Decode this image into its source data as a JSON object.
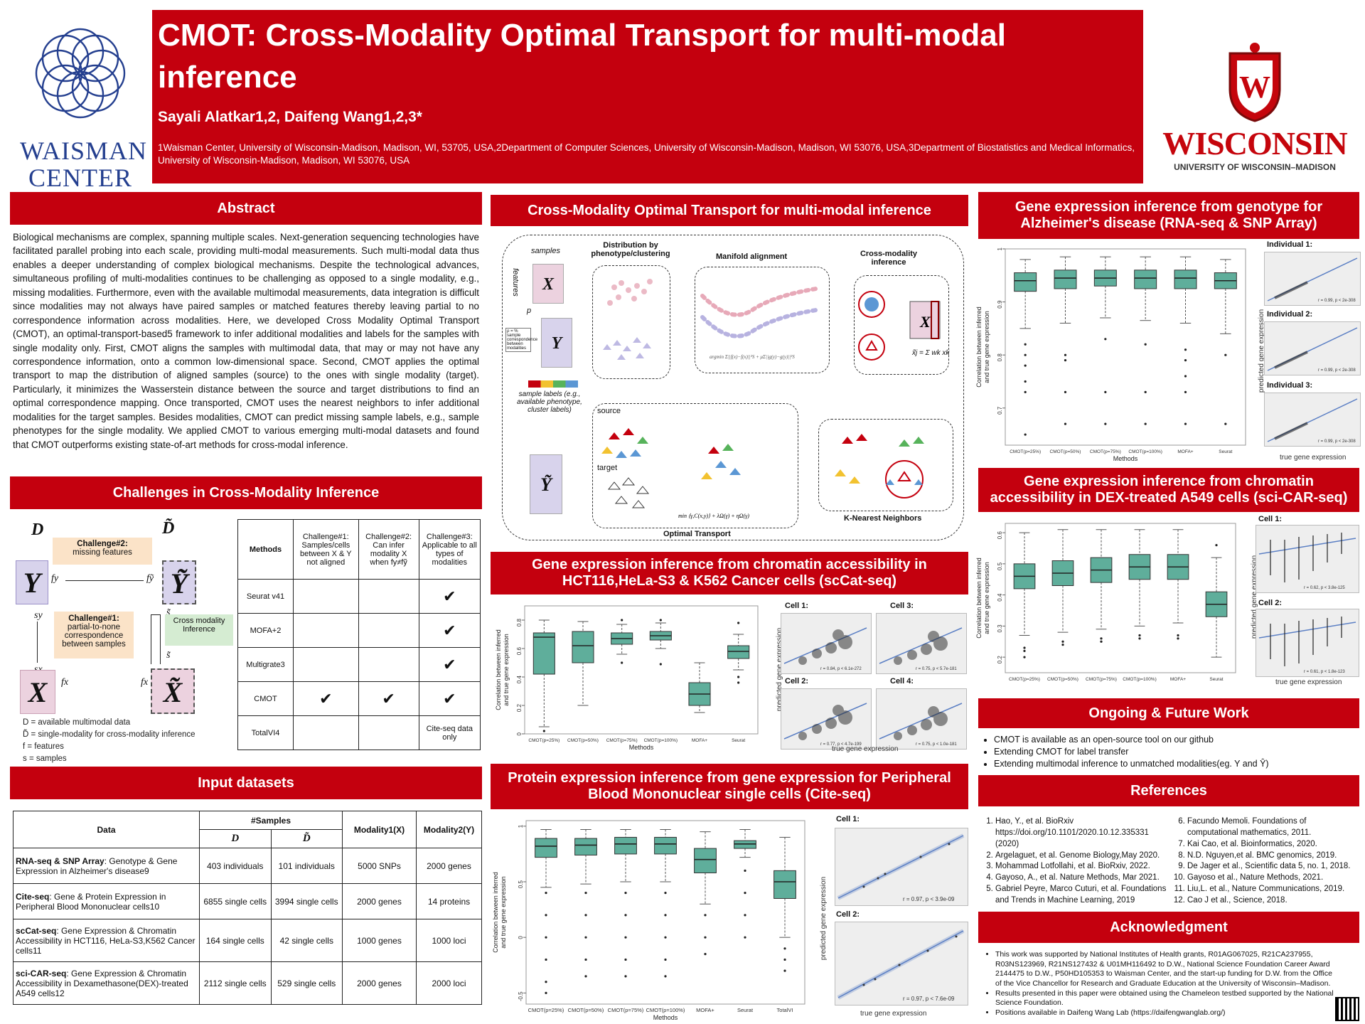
{
  "header": {
    "title": "CMOT: Cross-Modality Optimal Transport for multi-modal inference",
    "authors": "Sayali Alatkar1,2, Daifeng Wang1,2,3*",
    "affiliations": "1Waisman Center, University of Wisconsin-Madison, Madison, WI, 53705, USA,2Department of Computer Sciences, University of Wisconsin-Madison, Madison, WI 53076, USA,3Department of Biostatistics and Medical Informatics, University of Wisconsin-Madison, Madison, WI 53076, USA",
    "left_logo_line1": "WAISMAN",
    "left_logo_line2": "CENTER",
    "right_logo_line1": "WISCONSIN",
    "right_logo_line2": "UNIVERSITY OF WISCONSIN–MADISON"
  },
  "abstract": {
    "title": "Abstract",
    "text": "Biological mechanisms are complex, spanning multiple scales. Next-generation sequencing technologies have facilitated parallel probing into each scale, providing multi-modal measurements. Such multi-modal data thus enables a deeper understanding of complex biological mechanisms. Despite the technological advances, simultaneous profiling of multi-modalities continues to be challenging as opposed to a single modality, e.g., missing modalities. Furthermore, even with the available multimodal measurements, data integration is difficult since modalities may not always have paired samples or matched features thereby leaving partial to no correspondence information across modalities. Here, we developed Cross Modality Optimal Transport (CMOT), an optimal-transport-based5 framework to infer additional modalities and labels for the samples with single modality only. First, CMOT aligns the samples with multimodal data, that may or may not have any correspondence information, onto a common low-dimensional space. Second, CMOT applies the optimal transport to map the distribution of aligned samples (source) to the ones with single modality (target). Particularly, it minimizes the Wasserstein distance between the source and target distributions to find an optimal correspondence mapping. Once transported, CMOT uses the nearest neighbors to infer additional modalities for the target samples. Besides modalities, CMOT can predict missing sample labels, e.g., sample phenotypes for the single modality. We applied CMOT to various emerging multi-modal datasets and found that CMOT outperforms existing state-of-art methods for cross-modal inference."
  },
  "challenges": {
    "title": "Challenges in Cross-Modality Inference",
    "diagram": {
      "D": "D",
      "D_tilde": "D̃",
      "Y": "Y",
      "Y_tilde": "Ỹ",
      "X": "X",
      "X_tilde": "X̃",
      "fy": "fy",
      "fy_tilde": "fỹ",
      "fx": "fx",
      "fx_tilde": "fx",
      "sy": "sy",
      "sx": "sx",
      "s_tilde": "s̃",
      "challenge2_title": "Challenge#2:",
      "challenge2_text": "missing features",
      "challenge1_title": "Challenge#1:",
      "challenge1_text": "partial-to-none correspondence between samples",
      "cross_modality": "Cross modality Inference"
    },
    "legend": [
      "D = available multimodal data",
      "D̃ = single-modality for cross-modality inference",
      "f = features",
      "s = samples"
    ],
    "table": {
      "headers": [
        "Methods",
        "Challenge#1: Samples/cells between X & Y not aligned",
        "Challenge#2: Can infer modality X when fy≠fỹ",
        "Challenge#3: Applicable to all types of modalities"
      ],
      "rows": [
        [
          "Seurat v41",
          "",
          "",
          "✔"
        ],
        [
          "MOFA+2",
          "",
          "",
          "✔"
        ],
        [
          "Multigrate3",
          "",
          "",
          "✔"
        ],
        [
          "CMOT",
          "✔",
          "✔",
          "✔"
        ],
        [
          "TotalVI4",
          "",
          "",
          "Cite-seq data only"
        ]
      ]
    }
  },
  "datasets": {
    "title": "Input datasets",
    "col_data": "Data",
    "col_samples": "#Samples",
    "col_D": "D",
    "col_Dt": "D̃",
    "col_mod1": "Modality1(X)",
    "col_mod2": "Modality2(Y)",
    "rows": [
      {
        "name": "RNA-seq & SNP Array",
        "desc": ": Genotype & Gene Expression in Alzheimer's disease9",
        "d": "403 individuals",
        "dt": "101 individuals",
        "m1": "5000 SNPs",
        "m2": "2000 genes"
      },
      {
        "name": "Cite-seq",
        "desc": ": Gene & Protein Expression in Peripheral Blood Mononuclear cells10",
        "d": "6855 single cells",
        "dt": "3994 single cells",
        "m1": "2000 genes",
        "m2": "14 proteins"
      },
      {
        "name": "scCat-seq",
        "desc": ": Gene Expression & Chromatin Accessibility in HCT116, HeLa-S3,K562 Cancer cells11",
        "d": "164 single cells",
        "dt": "42 single cells",
        "m1": "1000 genes",
        "m2": "1000 loci"
      },
      {
        "name": "sci-CAR-seq",
        "desc": ": Gene Expression & Chromatin Accessibility in Dexamethasone(DEX)-treated A549 cells12",
        "d": "2112 single cells",
        "dt": "529 single cells",
        "m1": "2000 genes",
        "m2": "2000 loci"
      }
    ]
  },
  "cmot": {
    "title": "Cross-Modality Optimal Transport for multi-modal inference",
    "labels": {
      "samples": "samples",
      "features": "features",
      "p": "p",
      "distribution": "Distribution by phenotype/clustering",
      "manifold": "Manifold alignment",
      "cross_inference": "Cross-modality inference",
      "pi_note": "ρ = % sample correspondence between modalities",
      "sample_labels": "sample labels (e.g., available phenotype, cluster labels)",
      "source": "source",
      "target": "target",
      "optimal_transport": "Optimal Transport",
      "knn": "K-Nearest Neighbors",
      "formula_xj": "x̃j = Σ wk xk"
    }
  },
  "alz": {
    "title": "Gene expression inference from genotype for Alzheimer's disease (RNA-seq & SNP Array)",
    "ylabel": "Correlation between inferred and true gene expression",
    "xlabel": "Methods",
    "scatter_ylabel": "predicted gene expression",
    "scatter_xlabel": "true gene expression",
    "individuals": [
      "Individual 1:",
      "Individual 2:",
      "Individual 3:"
    ],
    "individual_stats": [
      "r = 0.99, p < 2e-308",
      "r = 0.99, p < 2e-308",
      "r = 0.99, p < 2e-308"
    ]
  },
  "scicar": {
    "title": "Gene expression inference from chromatin accessibility in DEX-treated A549 cells (sci-CAR-seq)",
    "ylabel": "Correlation between inferred and true gene expression",
    "scatter_ylabel": "predicted gene expression",
    "scatter_xlabel": "true gene expression",
    "cells": [
      "Cell 1:",
      "Cell 2:"
    ],
    "cell_stats": [
      "r = 0.62, p < 3.8e-125",
      "r = 0.61, p < 1.8e-123"
    ]
  },
  "sccat": {
    "title": "Gene expression inference from chromatin accessibility in HCT116,HeLa-S3 & K562 Cancer cells (scCat-seq)",
    "ylabel": "Correlation between inferred and true gene expression",
    "xlabel": "Methods",
    "scatter_ylabel": "predicted gene expression",
    "scatter_xlabel": "true gene expression",
    "cells": [
      "Cell 1:",
      "Cell 3:",
      "Cell 2:",
      "Cell 4:"
    ],
    "cell_stats": [
      "r = 0.84, p < 6.1e-272",
      "r = 0.75, p < 5.7e-181",
      "r = 0.77, p < 4.7e-199",
      "r = 0.75, p < 1.0e-181"
    ]
  },
  "citeseq": {
    "title": "Protein expression inference from gene expression for Peripheral Blood Mononuclear single cells (Cite-seq)",
    "ylabel": "Correlation between inferred and true gene expression",
    "xlabel": "Methods",
    "scatter_ylabel": "predicted gene expression",
    "scatter_xlabel": "true gene expression",
    "cells": [
      "Cell 1:",
      "Cell 2:"
    ],
    "cell_stats": [
      "r = 0.97, p < 3.9e-09",
      "r = 0.97, p < 7.6e-09"
    ]
  },
  "future": {
    "title": "Ongoing & Future Work",
    "items": [
      "CMOT is available as an open-source tool on our github",
      "Extending CMOT for label transfer",
      "Extending multimodal inference to unmatched modalities(eg. Y and Ŷ)"
    ]
  },
  "references": {
    "title": "References",
    "left": [
      "Hao, Y., et al. BioRxiv https://doi.org/10.1101/2020.10.12.335331 (2020)",
      "Argelaguet, et al. Genome Biology,May 2020.",
      "Mohammad Lotfollahi, et al. BioRxiv, 2022.",
      "Gayoso, A., et al. Nature Methods, Mar 2021.",
      "Gabriel Peyre, Marco Cuturi, et al. Foundations and Trends in Machine Learning, 2019"
    ],
    "right": [
      "Facundo Memoli. Foundations of computational mathematics, 2011.",
      "Kai Cao, et al. Bioinformatics, 2020.",
      "N.D. Nguyen,et al. BMC genomics, 2019.",
      "De Jager et al., Scientific data 5, no. 1, 2018.",
      "Gayoso et al., Nature Methods, 2021.",
      "Liu,L. et al., Nature Communications, 2019.",
      "Cao J et al., Science, 2018."
    ]
  },
  "ack": {
    "title": "Acknowledgment",
    "items": [
      "This work was supported by National Institutes of Health grants, R01AG067025, R21CA237955, R03NS123969, R21NS127432 & U01MH116492 to D.W., National Science Foundation Career Award 2144475 to D.W., P50HD105353 to Waisman Center, and the start-up funding for D.W. from the Office of the Vice Chancellor for Research and Graduate Education at the University of Wisconsin–Madison.",
      "Results presented in this paper were obtained using the Chameleon testbed supported by the National Science Foundation.",
      "Positions available in Daifeng Wang Lab (https://daifengwanglab.org/)"
    ]
  },
  "chart_data": [
    {
      "type": "box",
      "title": "Gene expression inference from genotype for Alzheimer's disease (RNA-seq & SNP Array)",
      "xlabel": "Methods",
      "ylabel": "Correlation between inferred and true gene expression",
      "ylim": [
        0.63,
        1.0
      ],
      "yticks": [
        0.7,
        0.8,
        0.9,
        1.0
      ],
      "categories": [
        "CMOT(p=25%)",
        "CMOT(p=50%)",
        "CMOT(p=75%)",
        "CMOT(p=100%)",
        "MOFA+",
        "Seurat"
      ],
      "boxes": [
        {
          "min": 0.85,
          "q1": 0.92,
          "median": 0.94,
          "q3": 0.955,
          "max": 0.98,
          "outliers": [
            0.82,
            0.8,
            0.78,
            0.75,
            0.73,
            0.65
          ]
        },
        {
          "min": 0.86,
          "q1": 0.925,
          "median": 0.945,
          "q3": 0.96,
          "max": 0.985,
          "outliers": [
            0.8,
            0.79,
            0.73,
            0.67
          ]
        },
        {
          "min": 0.87,
          "q1": 0.93,
          "median": 0.945,
          "q3": 0.96,
          "max": 0.985,
          "outliers": [
            0.83,
            0.73,
            0.67
          ]
        },
        {
          "min": 0.865,
          "q1": 0.925,
          "median": 0.945,
          "q3": 0.96,
          "max": 0.985,
          "outliers": [
            0.82,
            0.73,
            0.67
          ]
        },
        {
          "min": 0.86,
          "q1": 0.925,
          "median": 0.945,
          "q3": 0.96,
          "max": 0.985,
          "outliers": [
            0.81,
            0.79,
            0.76,
            0.73,
            0.67
          ]
        },
        {
          "min": 0.84,
          "q1": 0.925,
          "median": 0.94,
          "q3": 0.955,
          "max": 0.98,
          "outliers": [
            0.8,
            0.67
          ]
        }
      ],
      "color": "#5fae9b"
    },
    {
      "type": "box",
      "title": "Gene expression inference from chromatin accessibility in DEX-treated A549 cells (sci-CAR-seq)",
      "ylabel": "Correlation between inferred and true gene expression",
      "ylim": [
        0.15,
        0.63
      ],
      "yticks": [
        0.2,
        0.3,
        0.4,
        0.5,
        0.6
      ],
      "categories": [
        "CMOT(p=25%)",
        "CMOT(p=50%)",
        "CMOT(p=75%)",
        "CMOT(p=100%)",
        "MOFA+",
        "Seurat"
      ],
      "boxes": [
        {
          "min": 0.27,
          "q1": 0.42,
          "median": 0.46,
          "q3": 0.5,
          "max": 0.6,
          "outliers": [
            0.23,
            0.22,
            0.2
          ]
        },
        {
          "min": 0.28,
          "q1": 0.43,
          "median": 0.47,
          "q3": 0.51,
          "max": 0.61,
          "outliers": [
            0.25,
            0.24
          ]
        },
        {
          "min": 0.29,
          "q1": 0.44,
          "median": 0.48,
          "q3": 0.52,
          "max": 0.61,
          "outliers": [
            0.26,
            0.25
          ]
        },
        {
          "min": 0.3,
          "q1": 0.45,
          "median": 0.49,
          "q3": 0.53,
          "max": 0.61,
          "outliers": [
            0.27,
            0.26
          ]
        },
        {
          "min": 0.31,
          "q1": 0.45,
          "median": 0.49,
          "q3": 0.53,
          "max": 0.61,
          "outliers": [
            0.27,
            0.26
          ]
        },
        {
          "min": 0.2,
          "q1": 0.33,
          "median": 0.37,
          "q3": 0.41,
          "max": 0.52,
          "outliers": [
            0.56
          ]
        }
      ],
      "color": "#5fae9b"
    },
    {
      "type": "box",
      "title": "Gene expression inference from chromatin accessibility in HCT116,HeLa-S3 & K562 Cancer cells (scCat-seq)",
      "xlabel": "Methods",
      "ylabel": "Correlation between inferred and true gene expression",
      "ylim": [
        0.0,
        0.9
      ],
      "yticks": [
        0.0,
        0.2,
        0.4,
        0.6,
        0.8
      ],
      "categories": [
        "CMOT(p=25%)",
        "CMOT(p=50%)",
        "CMOT(p=75%)",
        "CMOT(p=100%)",
        "MOFA+",
        "Seurat"
      ],
      "boxes": [
        {
          "min": 0.05,
          "q1": 0.42,
          "median": 0.68,
          "q3": 0.71,
          "max": 0.8,
          "outliers": [
            0.02
          ]
        },
        {
          "min": 0.2,
          "q1": 0.5,
          "median": 0.62,
          "q3": 0.72,
          "max": 0.79,
          "outliers": []
        },
        {
          "min": 0.56,
          "q1": 0.63,
          "median": 0.67,
          "q3": 0.71,
          "max": 0.77,
          "outliers": [
            0.8,
            0.5
          ]
        },
        {
          "min": 0.6,
          "q1": 0.66,
          "median": 0.69,
          "q3": 0.72,
          "max": 0.78,
          "outliers": [
            0.8,
            0.49
          ]
        },
        {
          "min": 0.15,
          "q1": 0.2,
          "median": 0.28,
          "q3": 0.36,
          "max": 0.5,
          "outliers": []
        },
        {
          "min": 0.45,
          "q1": 0.53,
          "median": 0.58,
          "q3": 0.62,
          "max": 0.7,
          "outliers": [
            0.78,
            0.4,
            0.36
          ]
        }
      ],
      "color": "#5fae9b"
    },
    {
      "type": "box",
      "title": "Protein expression inference from gene expression for Peripheral Blood Mononuclear single cells (Cite-seq)",
      "xlabel": "Methods",
      "ylabel": "Correlation between inferred and true gene expression",
      "ylim": [
        -0.6,
        1.05
      ],
      "yticks": [
        -0.5,
        0.0,
        0.5,
        1.0
      ],
      "categories": [
        "CMOT(p=25%)",
        "CMOT(p=50%)",
        "CMOT(p=75%)",
        "CMOT(p=100%)",
        "MOFA+",
        "Seurat",
        "TotalVI"
      ],
      "boxes": [
        {
          "min": 0.45,
          "q1": 0.72,
          "median": 0.82,
          "q3": 0.89,
          "max": 0.97,
          "outliers": [
            0.4,
            0.2,
            0.0,
            -0.2,
            -0.4,
            -0.5
          ]
        },
        {
          "min": 0.48,
          "q1": 0.74,
          "median": 0.83,
          "q3": 0.89,
          "max": 0.97,
          "outliers": [
            0.4,
            0.2,
            0.0,
            -0.2,
            -0.35
          ]
        },
        {
          "min": 0.5,
          "q1": 0.75,
          "median": 0.84,
          "q3": 0.9,
          "max": 0.97,
          "outliers": [
            0.4,
            0.2,
            0.0,
            -0.2,
            -0.35
          ]
        },
        {
          "min": 0.5,
          "q1": 0.75,
          "median": 0.84,
          "q3": 0.9,
          "max": 0.97,
          "outliers": [
            0.4,
            0.2,
            0.0,
            -0.2,
            -0.35
          ]
        },
        {
          "min": 0.3,
          "q1": 0.58,
          "median": 0.7,
          "q3": 0.8,
          "max": 0.95,
          "outliers": [
            0.2,
            0.0,
            -0.15
          ]
        },
        {
          "min": 0.72,
          "q1": 0.8,
          "median": 0.84,
          "q3": 0.87,
          "max": 0.97,
          "outliers": [
            0.6,
            0.4,
            0.2,
            0.0
          ]
        },
        {
          "min": 0.0,
          "q1": 0.35,
          "median": 0.5,
          "q3": 0.6,
          "max": 0.9,
          "outliers": [
            -0.1,
            -0.2,
            -0.3
          ]
        }
      ],
      "color": "#5fae9b"
    }
  ]
}
